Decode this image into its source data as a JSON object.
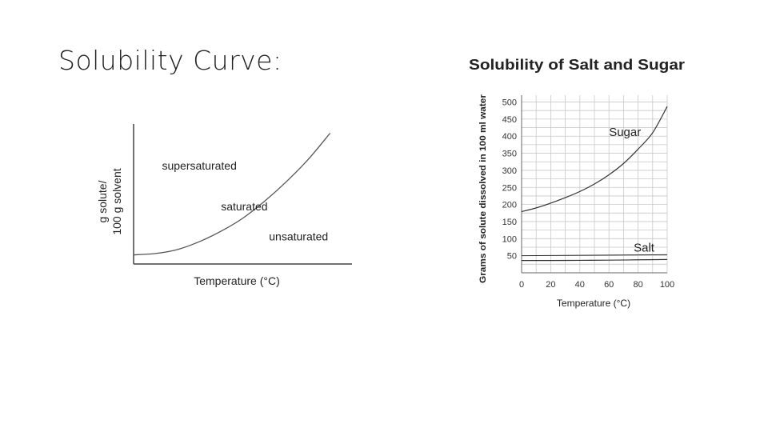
{
  "slide": {
    "title": "Solubility Curve:"
  },
  "chart_data": [
    {
      "type": "line",
      "title": "",
      "xlabel": "Temperature (°C)",
      "ylabel_line1": "g solute/",
      "ylabel_line2": "100 g solvent",
      "series": [
        {
          "name": "",
          "points": [
            [
              0,
              0.07
            ],
            [
              0.1,
              0.08
            ],
            [
              0.2,
              0.11
            ],
            [
              0.3,
              0.17
            ],
            [
              0.4,
              0.25
            ],
            [
              0.5,
              0.35
            ],
            [
              0.6,
              0.48
            ],
            [
              0.7,
              0.63
            ],
            [
              0.8,
              0.8
            ],
            [
              0.9,
              1.0
            ]
          ]
        }
      ],
      "annotations": [
        {
          "text": "supersaturated",
          "x": 0.13,
          "y": 0.72
        },
        {
          "text": "saturated",
          "x": 0.4,
          "y": 0.41
        },
        {
          "text": "unsaturated",
          "x": 0.62,
          "y": 0.18
        }
      ],
      "xlim": [
        0,
        1
      ],
      "ylim": [
        0,
        1.1
      ],
      "grid": false
    },
    {
      "type": "line",
      "title": "Solubility of Salt and Sugar",
      "xlabel": "Temperature (°C)",
      "ylabel": "Grams of solute dissolved in 100 ml water",
      "x_ticks": [
        0,
        20,
        40,
        60,
        80,
        100
      ],
      "y_ticks": [
        50,
        100,
        150,
        200,
        250,
        300,
        350,
        400,
        450,
        500
      ],
      "xlim": [
        0,
        100
      ],
      "ylim": [
        0,
        520
      ],
      "grid": true,
      "series": [
        {
          "name": "Sugar",
          "x": [
            0,
            10,
            20,
            30,
            40,
            50,
            60,
            70,
            80,
            90,
            100
          ],
          "y": [
            179,
            190,
            204,
            220,
            238,
            260,
            287,
            320,
            362,
            410,
            487
          ]
        },
        {
          "name": "Salt",
          "x": [
            0,
            20,
            40,
            60,
            80,
            100
          ],
          "y": [
            36,
            36,
            36.5,
            37,
            38,
            39
          ]
        }
      ]
    }
  ]
}
